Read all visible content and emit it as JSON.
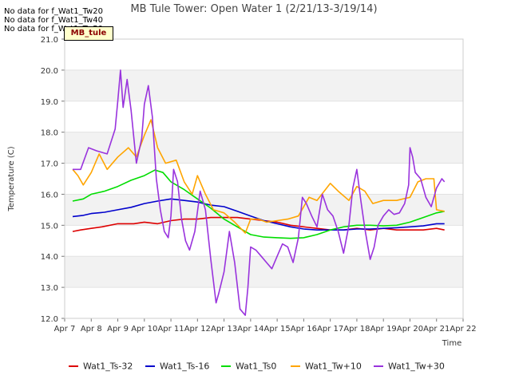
{
  "notes": [
    "No data for f_Wat1_Tw20",
    "No data for f_Wat1_Tw40",
    "No data for f_Wat1_Tw50"
  ],
  "tag_label": "MB_tule",
  "chart_data": {
    "type": "line",
    "title": "MB Tule Tower: Open Water 1 (2/21/13-3/19/14)",
    "xlabel": "Time",
    "ylabel": "Temperature (C)",
    "x_ticks": [
      "Apr 7",
      "Apr 8",
      "Apr 9",
      "Apr 10",
      "Apr 11",
      "Apr 12",
      "Apr 13",
      "Apr 14",
      "Apr 15",
      "Apr 16",
      "Apr 17",
      "Apr 18",
      "Apr 19",
      "Apr 20",
      "Apr 21",
      "Apr 22"
    ],
    "xlim": [
      7,
      22
    ],
    "ylim": [
      12.0,
      21.0
    ],
    "y_ticks": [
      "12.0",
      "13.0",
      "14.0",
      "15.0",
      "16.0",
      "17.0",
      "18.0",
      "19.0",
      "20.0",
      "21.0"
    ],
    "grid": "horizontal bands",
    "legend": "bottom",
    "series": [
      {
        "name": "Wat1_Ts-32",
        "color": "#dd0000",
        "x": [
          7.3,
          7.6,
          8.0,
          8.4,
          9.0,
          9.6,
          10.0,
          10.5,
          11.0,
          11.5,
          12.0,
          12.5,
          13.0,
          13.5,
          14.0,
          14.5,
          15.0,
          15.5,
          16.0,
          16.5,
          17.0,
          17.5,
          18.0,
          18.5,
          19.0,
          19.5,
          20.0,
          20.5,
          21.0,
          21.3
        ],
        "y": [
          14.8,
          14.85,
          14.9,
          14.95,
          15.05,
          15.05,
          15.1,
          15.05,
          15.15,
          15.2,
          15.2,
          15.25,
          15.25,
          15.25,
          15.2,
          15.15,
          15.1,
          15.0,
          14.95,
          14.9,
          14.85,
          14.85,
          14.9,
          14.85,
          14.9,
          14.85,
          14.85,
          14.85,
          14.9,
          14.85
        ]
      },
      {
        "name": "Wat1_Ts-16",
        "color": "#0000cc",
        "x": [
          7.3,
          7.7,
          8.0,
          8.5,
          9.0,
          9.5,
          10.0,
          10.5,
          11.0,
          11.5,
          12.0,
          12.5,
          13.0,
          13.5,
          14.0,
          14.5,
          15.0,
          15.5,
          16.0,
          16.5,
          17.0,
          17.5,
          18.0,
          18.5,
          19.0,
          19.5,
          20.0,
          20.5,
          21.0,
          21.3
        ],
        "y": [
          15.28,
          15.32,
          15.38,
          15.42,
          15.5,
          15.58,
          15.7,
          15.78,
          15.85,
          15.8,
          15.75,
          15.65,
          15.6,
          15.45,
          15.3,
          15.15,
          15.05,
          14.95,
          14.88,
          14.85,
          14.85,
          14.85,
          14.88,
          14.88,
          14.9,
          14.92,
          14.95,
          14.98,
          15.05,
          15.05
        ]
      },
      {
        "name": "Wat1_Ts0",
        "color": "#00dd00",
        "x": [
          7.3,
          7.7,
          8.0,
          8.5,
          9.0,
          9.5,
          10.0,
          10.4,
          10.7,
          11.0,
          11.5,
          12.0,
          12.5,
          13.0,
          13.5,
          14.0,
          14.5,
          15.0,
          15.5,
          16.0,
          16.5,
          17.0,
          17.5,
          18.0,
          18.5,
          19.0,
          19.5,
          20.0,
          20.5,
          21.0,
          21.3
        ],
        "y": [
          15.78,
          15.85,
          16.0,
          16.1,
          16.25,
          16.45,
          16.6,
          16.78,
          16.7,
          16.4,
          16.15,
          15.85,
          15.55,
          15.2,
          14.95,
          14.7,
          14.62,
          14.6,
          14.58,
          14.6,
          14.7,
          14.85,
          14.95,
          15.0,
          15.0,
          14.98,
          15.0,
          15.1,
          15.25,
          15.4,
          15.45
        ]
      },
      {
        "name": "Wat1_Tw+10",
        "color": "#ffa500",
        "x": [
          7.3,
          7.5,
          7.7,
          8.0,
          8.3,
          8.6,
          9.0,
          9.4,
          9.7,
          10.0,
          10.25,
          10.5,
          10.8,
          11.2,
          11.5,
          11.8,
          12.0,
          12.3,
          12.6,
          13.0,
          13.4,
          13.8,
          14.0,
          14.3,
          14.6,
          15.0,
          15.4,
          15.8,
          16.2,
          16.5,
          17.0,
          17.3,
          17.7,
          18.0,
          18.3,
          18.6,
          19.0,
          19.5,
          20.0,
          20.3,
          20.6,
          20.9,
          21.0,
          21.3
        ],
        "y": [
          16.8,
          16.6,
          16.3,
          16.7,
          17.3,
          16.8,
          17.2,
          17.5,
          17.2,
          17.9,
          18.4,
          17.5,
          17.0,
          17.1,
          16.4,
          16.0,
          16.6,
          16.0,
          15.5,
          15.4,
          15.1,
          14.75,
          15.2,
          15.2,
          15.1,
          15.15,
          15.2,
          15.3,
          15.9,
          15.8,
          16.35,
          16.1,
          15.8,
          16.25,
          16.1,
          15.7,
          15.8,
          15.8,
          15.9,
          16.4,
          16.5,
          16.5,
          15.5,
          15.45
        ]
      },
      {
        "name": "Wat1_Tw+30",
        "color": "#9933dd",
        "x": [
          7.3,
          7.6,
          7.9,
          8.2,
          8.6,
          8.9,
          9.0,
          9.1,
          9.2,
          9.35,
          9.5,
          9.7,
          9.9,
          10.0,
          10.15,
          10.3,
          10.45,
          10.6,
          10.75,
          10.9,
          11.0,
          11.1,
          11.25,
          11.4,
          11.55,
          11.7,
          11.9,
          12.1,
          12.3,
          12.5,
          12.7,
          12.8,
          13.0,
          13.2,
          13.4,
          13.6,
          13.8,
          13.9,
          14.0,
          14.2,
          14.4,
          14.6,
          14.8,
          15.0,
          15.2,
          15.4,
          15.6,
          15.8,
          15.95,
          16.1,
          16.3,
          16.5,
          16.7,
          16.9,
          17.1,
          17.3,
          17.5,
          17.7,
          17.85,
          18.0,
          18.15,
          18.3,
          18.5,
          18.65,
          18.8,
          19.0,
          19.2,
          19.4,
          19.6,
          19.8,
          19.95,
          20.0,
          20.1,
          20.2,
          20.4,
          20.6,
          20.8,
          21.0,
          21.2,
          21.3
        ],
        "y": [
          16.8,
          16.8,
          17.5,
          17.4,
          17.3,
          18.1,
          19.0,
          20.0,
          18.8,
          19.7,
          18.7,
          17.0,
          17.8,
          18.9,
          19.5,
          18.5,
          16.5,
          15.5,
          14.8,
          14.6,
          15.3,
          16.8,
          16.4,
          15.2,
          14.5,
          14.2,
          14.8,
          16.1,
          15.5,
          13.9,
          12.5,
          12.8,
          13.5,
          14.8,
          13.8,
          12.3,
          12.1,
          13.0,
          14.3,
          14.2,
          14.0,
          13.8,
          13.6,
          14.0,
          14.4,
          14.3,
          13.8,
          14.6,
          15.9,
          15.7,
          15.3,
          14.95,
          16.0,
          15.5,
          15.3,
          14.8,
          14.1,
          15.0,
          16.2,
          16.8,
          15.8,
          14.9,
          13.9,
          14.3,
          15.0,
          15.3,
          15.5,
          15.35,
          15.4,
          15.7,
          16.3,
          17.5,
          17.2,
          16.7,
          16.5,
          15.9,
          15.6,
          16.2,
          16.5,
          16.4
        ]
      }
    ]
  }
}
